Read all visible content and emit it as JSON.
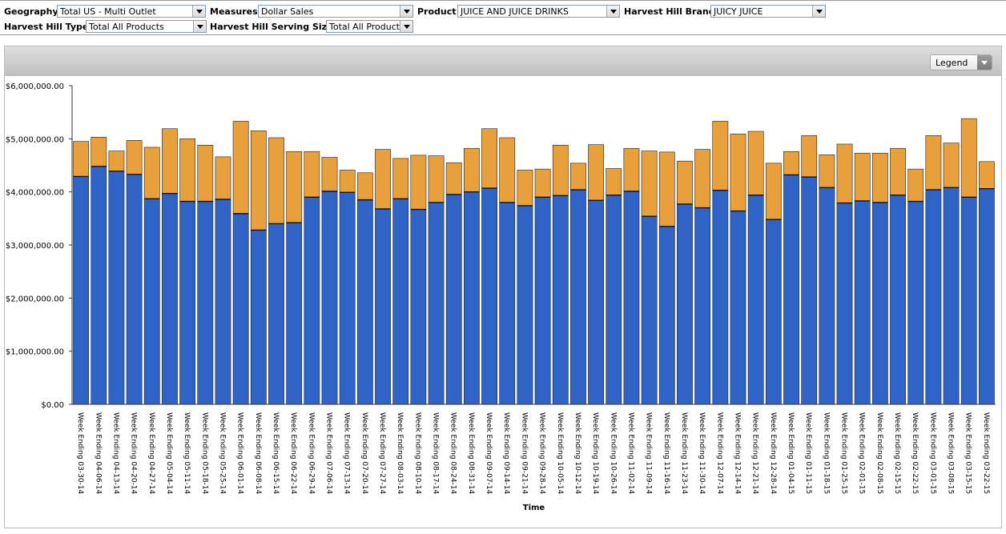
{
  "filters": {
    "geography": {
      "label": "Geography",
      "value": "Total US - Multi Outlet"
    },
    "measures": {
      "label": "Measures",
      "value": "Dollar Sales"
    },
    "product": {
      "label": "Product",
      "value": "JUICE AND JUICE DRINKS"
    },
    "brand": {
      "label": "Harvest Hill Brand",
      "value": "JUICY JUICE"
    },
    "type": {
      "label": "Harvest Hill Type",
      "value": "Total All Products"
    },
    "serving": {
      "label": "Harvest Hill Serving Size",
      "value": "Total All Products"
    }
  },
  "legend_button": {
    "label": "Legend"
  },
  "colors": {
    "series1": "#2f64c6",
    "series2": "#e8a03c",
    "axis": "#333333"
  },
  "chart_data": {
    "type": "bar",
    "stacked": true,
    "xlabel": "Time",
    "ylabel": "",
    "ylim": [
      0,
      6000000
    ],
    "yticks": [
      "$0.00",
      "$1,000,000.00",
      "$2,000,000.00",
      "$3,000,000.00",
      "$4,000,000.00",
      "$5,000,000.00",
      "$6,000,000.00"
    ],
    "legend": "hidden",
    "categories": [
      "Week Ending 03-30-14",
      "Week Ending 04-06-14",
      "Week Ending 04-13-14",
      "Week Ending 04-20-14",
      "Week Ending 04-27-14",
      "Week Ending 05-04-14",
      "Week Ending 05-11-14",
      "Week Ending 05-18-14",
      "Week Ending 05-25-14",
      "Week Ending 06-01-14",
      "Week Ending 06-08-14",
      "Week Ending 06-15-14",
      "Week Ending 06-22-14",
      "Week Ending 06-29-14",
      "Week Ending 07-06-14",
      "Week Ending 07-13-14",
      "Week Ending 07-20-14",
      "Week Ending 07-27-14",
      "Week Ending 08-03-14",
      "Week Ending 08-10-14",
      "Week Ending 08-17-14",
      "Week Ending 08-24-14",
      "Week Ending 08-31-14",
      "Week Ending 09-07-14",
      "Week Ending 09-14-14",
      "Week Ending 09-21-14",
      "Week Ending 09-28-14",
      "Week Ending 10-05-14",
      "Week Ending 10-12-14",
      "Week Ending 10-19-14",
      "Week Ending 10-26-14",
      "Week Ending 11-02-14",
      "Week Ending 11-09-14",
      "Week Ending 11-16-14",
      "Week Ending 11-23-14",
      "Week Ending 11-30-14",
      "Week Ending 12-07-14",
      "Week Ending 12-14-14",
      "Week Ending 12-21-14",
      "Week Ending 12-28-14",
      "Week Ending 01-04-15",
      "Week Ending 01-11-15",
      "Week Ending 01-18-15",
      "Week Ending 01-25-15",
      "Week Ending 02-01-15",
      "Week Ending 02-08-15",
      "Week Ending 02-15-15",
      "Week Ending 02-22-15",
      "Week Ending 03-01-15",
      "Week Ending 03-08-15",
      "Week Ending 03-15-15",
      "Week Ending 03-22-15"
    ],
    "series": [
      {
        "values": [
          4290000,
          4480000,
          4390000,
          4330000,
          3870000,
          3970000,
          3820000,
          3820000,
          3860000,
          3590000,
          3280000,
          3400000,
          3420000,
          3900000,
          4010000,
          3990000,
          3850000,
          3680000,
          3870000,
          3670000,
          3800000,
          3950000,
          4000000,
          4070000,
          3800000,
          3740000,
          3900000,
          3930000,
          4040000,
          3840000,
          3940000,
          4010000,
          3540000,
          3350000,
          3770000,
          3700000,
          4030000,
          3640000,
          3940000,
          3480000,
          4320000,
          4280000,
          4080000,
          3790000,
          3830000,
          3800000,
          3940000,
          3820000,
          4040000,
          4080000,
          3900000,
          4060000
        ]
      },
      {
        "values": [
          660000,
          550000,
          380000,
          640000,
          970000,
          1220000,
          1180000,
          1060000,
          800000,
          1740000,
          1870000,
          1620000,
          1340000,
          860000,
          640000,
          420000,
          510000,
          1120000,
          760000,
          1020000,
          880000,
          600000,
          820000,
          1120000,
          1220000,
          670000,
          530000,
          950000,
          500000,
          1050000,
          500000,
          810000,
          1230000,
          1400000,
          810000,
          1100000,
          1300000,
          1450000,
          1200000,
          1060000,
          440000,
          780000,
          620000,
          1110000,
          900000,
          930000,
          880000,
          610000,
          1020000,
          840000,
          1480000,
          510000
        ]
      }
    ]
  }
}
